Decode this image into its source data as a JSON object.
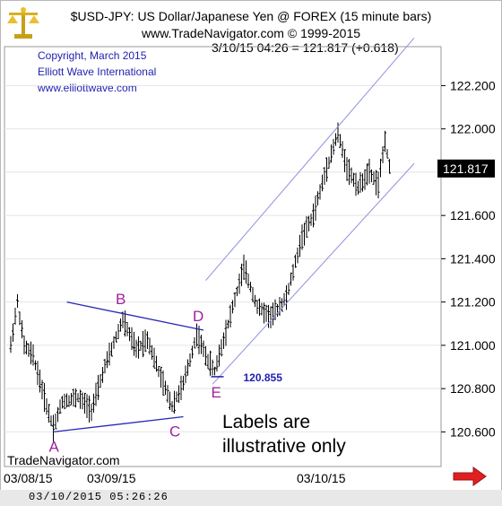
{
  "header": {
    "title": "$USD-JPY:  US Dollar/Japanese Yen @ FOREX  (15 minute bars)",
    "site": "www.TradeNavigator.com © 1999-2015",
    "quote": "3/10/15 04:26 = 121.817 (+0.618)"
  },
  "copyright": {
    "line1": "Copyright, March 2015",
    "line2": "Elliott Wave International",
    "line3": "www.elliottwave.com"
  },
  "status_bar": {
    "datetime": "03/10/2015 05:26:26"
  },
  "colors": {
    "label_purple": "#a020a0",
    "channel_blue": "#4040c8",
    "text_blue": "#1f1fb0",
    "bars": "#000000"
  },
  "icons": {
    "logo": "scales-icon",
    "scroll": "red-right-arrow-icon"
  },
  "chart_data": {
    "type": "ohlc",
    "bar_interval": "15 minute",
    "x_tick_labels": [
      "03/08/15",
      "03/09/15",
      "03/10/15"
    ],
    "y_ticks": [
      120.6,
      120.8,
      121.0,
      121.2,
      121.4,
      121.6,
      121.8,
      122.0,
      122.2
    ],
    "y_tick_labels": [
      "120.600",
      "120.800",
      "121.000",
      "121.200",
      "121.400",
      "121.600",
      "121.800",
      "122.000",
      "122.200"
    ],
    "ylim": [
      120.44,
      122.38
    ],
    "last_price_label": "121.817",
    "price_path": [
      {
        "bar": 0,
        "price": 121.0
      },
      {
        "bar": 3,
        "price": 121.2
      },
      {
        "bar": 6,
        "price": 121.0
      },
      {
        "bar": 10,
        "price": 120.95
      },
      {
        "bar": 16,
        "price": 120.72
      },
      {
        "bar": 19,
        "price": 120.62
      },
      {
        "bar": 23,
        "price": 120.74
      },
      {
        "bar": 30,
        "price": 120.76
      },
      {
        "bar": 36,
        "price": 120.7
      },
      {
        "bar": 42,
        "price": 120.9
      },
      {
        "bar": 50,
        "price": 121.12
      },
      {
        "bar": 56,
        "price": 120.98
      },
      {
        "bar": 61,
        "price": 121.03
      },
      {
        "bar": 67,
        "price": 120.85
      },
      {
        "bar": 72,
        "price": 120.72
      },
      {
        "bar": 77,
        "price": 120.82
      },
      {
        "bar": 83,
        "price": 121.05
      },
      {
        "bar": 88,
        "price": 120.93
      },
      {
        "bar": 91,
        "price": 120.88
      },
      {
        "bar": 97,
        "price": 121.1
      },
      {
        "bar": 104,
        "price": 121.36
      },
      {
        "bar": 110,
        "price": 121.18
      },
      {
        "bar": 116,
        "price": 121.13
      },
      {
        "bar": 123,
        "price": 121.22
      },
      {
        "bar": 130,
        "price": 121.5
      },
      {
        "bar": 135,
        "price": 121.6
      },
      {
        "bar": 141,
        "price": 121.82
      },
      {
        "bar": 146,
        "price": 121.98
      },
      {
        "bar": 150,
        "price": 121.82
      },
      {
        "bar": 155,
        "price": 121.73
      },
      {
        "bar": 160,
        "price": 121.8
      },
      {
        "bar": 164,
        "price": 121.74
      },
      {
        "bar": 167,
        "price": 121.95
      },
      {
        "bar": 169,
        "price": 121.82
      }
    ],
    "wave_labels": [
      {
        "text": "A",
        "bar": 19,
        "price": 120.6
      },
      {
        "text": "B",
        "bar": 50,
        "price": 121.14
      },
      {
        "text": "C",
        "bar": 72,
        "price": 120.67
      },
      {
        "text": "D",
        "bar": 84,
        "price": 121.07
      },
      {
        "text": "E",
        "bar": 91,
        "price": 120.855
      }
    ],
    "annotations": [
      {
        "text": "120.855",
        "bar": 91,
        "price": 120.855
      },
      {
        "text": "Labels are illustrative only"
      }
    ],
    "triangle_lines": [
      {
        "from": {
          "bar": 19,
          "price": 120.6
        },
        "to": {
          "bar": 77,
          "price": 120.67
        }
      },
      {
        "from": {
          "bar": 25,
          "price": 121.2
        },
        "to": {
          "bar": 86,
          "price": 121.07
        }
      }
    ],
    "channel_lines": [
      {
        "from": {
          "bar": 87,
          "price": 121.3
        },
        "to": {
          "bar": 180,
          "price": 122.42
        }
      },
      {
        "from": {
          "bar": 90,
          "price": 120.82
        },
        "to": {
          "bar": 180,
          "price": 121.84
        }
      }
    ]
  }
}
